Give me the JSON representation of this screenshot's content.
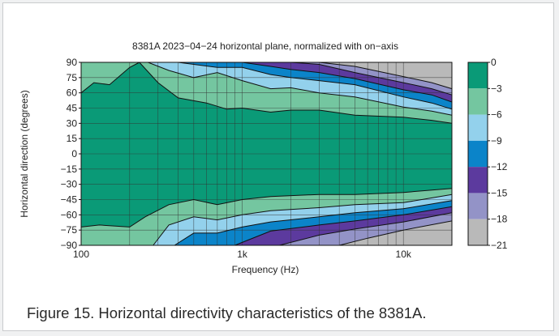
{
  "caption": "Figure 15. Horizontal directivity characteristics of the 8381A.",
  "chart_data": {
    "type": "heatmap",
    "title": "8381A 2023−04−24 horizontal plane, normalized with on−axis",
    "xlabel": "Frequency (Hz)",
    "ylabel": "Horizontal direction (degrees)",
    "x_scale": "log",
    "xlim": [
      100,
      20000
    ],
    "ylim": [
      -90,
      90
    ],
    "x_ticks": [
      {
        "value": 100,
        "label": "100"
      },
      {
        "value": 1000,
        "label": "1k"
      },
      {
        "value": 10000,
        "label": "10k"
      }
    ],
    "y_ticks": [
      {
        "value": 90,
        "label": "90"
      },
      {
        "value": 75,
        "label": "75"
      },
      {
        "value": 60,
        "label": "60"
      },
      {
        "value": 45,
        "label": "45"
      },
      {
        "value": 30,
        "label": "30"
      },
      {
        "value": 15,
        "label": "15"
      },
      {
        "value": 0,
        "label": "0"
      },
      {
        "value": -15,
        "label": "−15"
      },
      {
        "value": -30,
        "label": "−30"
      },
      {
        "value": -45,
        "label": "−45"
      },
      {
        "value": -60,
        "label": "−60"
      },
      {
        "value": -75,
        "label": "−75"
      },
      {
        "value": -90,
        "label": "−90"
      }
    ],
    "colorbar": {
      "levels": [
        {
          "label": "0",
          "color": "#0a9a77"
        },
        {
          "label": "−3",
          "color": "#74c6a0"
        },
        {
          "label": "−6",
          "color": "#93d1ec"
        },
        {
          "label": "−9",
          "color": "#0b84c9"
        },
        {
          "label": "−12",
          "color": "#5c3a9e"
        },
        {
          "label": "−15",
          "color": "#9393c7"
        },
        {
          "label": "−18",
          "color": "#b9b9b9"
        },
        {
          "label": "−21",
          "color": ""
        }
      ]
    },
    "contours": [
      {
        "level": -3,
        "points": [
          [
            100,
            60
          ],
          [
            120,
            70
          ],
          [
            150,
            68
          ],
          [
            200,
            85
          ],
          [
            230,
            90
          ]
        ]
      },
      {
        "level": -3,
        "points": [
          [
            230,
            90
          ],
          [
            300,
            70
          ],
          [
            400,
            55
          ],
          [
            600,
            50
          ],
          [
            800,
            44
          ],
          [
            1000,
            45
          ],
          [
            1500,
            41
          ],
          [
            2000,
            43
          ],
          [
            3000,
            43
          ],
          [
            5000,
            38
          ],
          [
            10000,
            36
          ],
          [
            15000,
            33
          ],
          [
            20000,
            30
          ]
        ]
      },
      {
        "level": -6,
        "points": [
          [
            260,
            90
          ],
          [
            350,
            82
          ],
          [
            500,
            75
          ],
          [
            700,
            80
          ],
          [
            1000,
            72
          ],
          [
            1500,
            64
          ],
          [
            2000,
            65
          ],
          [
            3000,
            60
          ],
          [
            5000,
            56
          ],
          [
            10000,
            46
          ],
          [
            15000,
            42
          ],
          [
            20000,
            38
          ]
        ]
      },
      {
        "level": -9,
        "points": [
          [
            400,
            90
          ],
          [
            700,
            85
          ],
          [
            1000,
            85
          ],
          [
            1500,
            78
          ],
          [
            2000,
            75
          ],
          [
            3000,
            72
          ],
          [
            5000,
            68
          ],
          [
            10000,
            56
          ],
          [
            15000,
            50
          ],
          [
            20000,
            44
          ]
        ]
      },
      {
        "level": -12,
        "points": [
          [
            600,
            90
          ],
          [
            1000,
            90
          ],
          [
            1500,
            86
          ],
          [
            2000,
            83
          ],
          [
            3000,
            80
          ],
          [
            5000,
            74
          ],
          [
            10000,
            63
          ],
          [
            15000,
            58
          ],
          [
            20000,
            51
          ]
        ]
      },
      {
        "level": -15,
        "points": [
          [
            1500,
            90
          ],
          [
            2000,
            90
          ],
          [
            3000,
            88
          ],
          [
            5000,
            80
          ],
          [
            10000,
            70
          ],
          [
            15000,
            64
          ],
          [
            20000,
            58
          ]
        ]
      },
      {
        "level": -18,
        "points": [
          [
            3000,
            90
          ],
          [
            5000,
            86
          ],
          [
            10000,
            76
          ],
          [
            15000,
            70
          ],
          [
            20000,
            64
          ]
        ]
      },
      {
        "level": -3,
        "points": [
          [
            100,
            -72
          ],
          [
            130,
            -70
          ],
          [
            200,
            -72
          ],
          [
            250,
            -62
          ],
          [
            350,
            -50
          ],
          [
            500,
            -45
          ],
          [
            700,
            -50
          ],
          [
            1000,
            -45
          ],
          [
            1500,
            -42
          ],
          [
            3000,
            -40
          ],
          [
            5000,
            -40
          ],
          [
            10000,
            -38
          ],
          [
            20000,
            -34
          ]
        ]
      },
      {
        "level": -6,
        "points": [
          [
            280,
            -90
          ],
          [
            350,
            -70
          ],
          [
            500,
            -62
          ],
          [
            700,
            -65
          ],
          [
            1000,
            -60
          ],
          [
            1500,
            -56
          ],
          [
            3000,
            -53
          ],
          [
            5000,
            -50
          ],
          [
            10000,
            -48
          ],
          [
            20000,
            -40
          ]
        ]
      },
      {
        "level": -9,
        "points": [
          [
            380,
            -90
          ],
          [
            500,
            -78
          ],
          [
            700,
            -78
          ],
          [
            1000,
            -72
          ],
          [
            1500,
            -67
          ],
          [
            3000,
            -62
          ],
          [
            5000,
            -58
          ],
          [
            10000,
            -54
          ],
          [
            20000,
            -46
          ]
        ]
      },
      {
        "level": -12,
        "points": [
          [
            900,
            -90
          ],
          [
            1500,
            -76
          ],
          [
            3000,
            -70
          ],
          [
            5000,
            -66
          ],
          [
            10000,
            -60
          ],
          [
            20000,
            -52
          ]
        ]
      },
      {
        "level": -15,
        "points": [
          [
            1700,
            -90
          ],
          [
            3000,
            -80
          ],
          [
            5000,
            -74
          ],
          [
            10000,
            -67
          ],
          [
            20000,
            -58
          ]
        ]
      },
      {
        "level": -18,
        "points": [
          [
            4000,
            -90
          ],
          [
            6000,
            -83
          ],
          [
            10000,
            -75
          ],
          [
            20000,
            -66
          ]
        ]
      }
    ]
  }
}
